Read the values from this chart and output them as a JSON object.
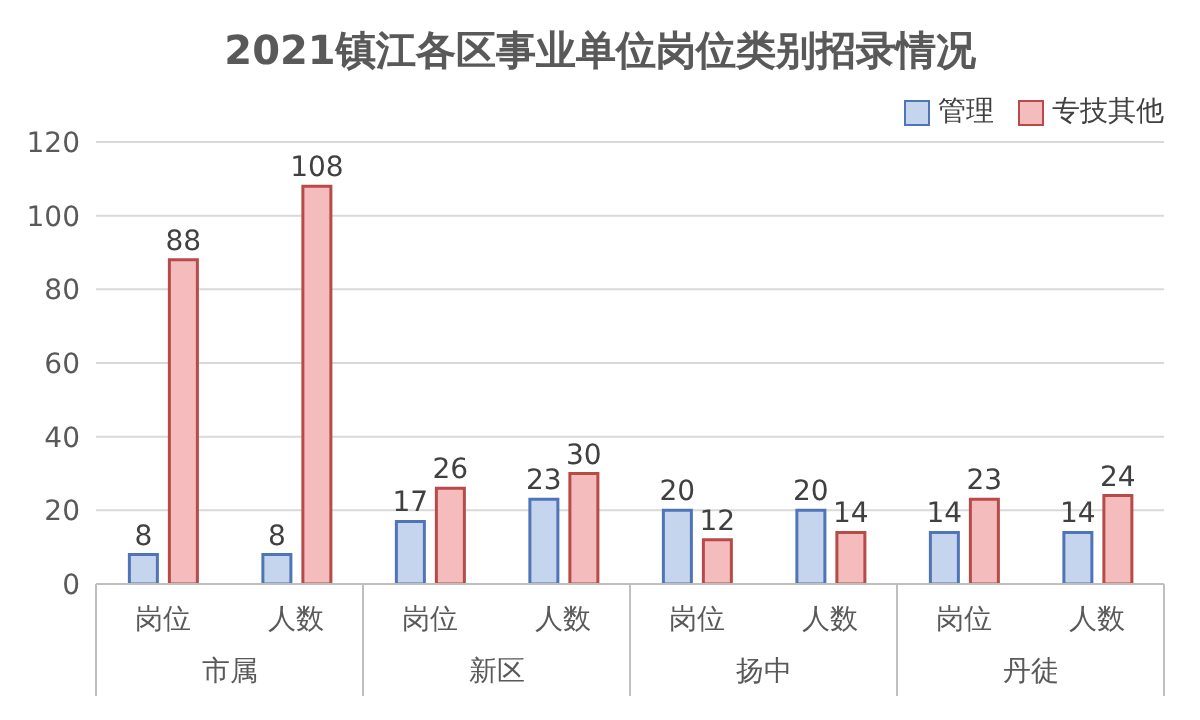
{
  "chart_data": {
    "type": "bar",
    "title": "2021镇江各区事业单位岗位类别招录情况",
    "categories": [
      "岗位",
      "人数",
      "岗位",
      "人数",
      "岗位",
      "人数",
      "岗位",
      "人数"
    ],
    "annotations": [
      "市属",
      "新区",
      "扬中",
      "丹徒"
    ],
    "series": [
      {
        "name": "管理",
        "color": "#c5d5ee",
        "values": [
          8,
          8,
          17,
          23,
          20,
          20,
          14,
          14
        ]
      },
      {
        "name": "专技其他",
        "color": "#f4bcbc",
        "values": [
          88,
          108,
          26,
          30,
          12,
          14,
          23,
          24
        ]
      }
    ],
    "ylim": [
      0,
      120
    ],
    "yticks": [
      0,
      20,
      40,
      60,
      80,
      100,
      120
    ],
    "grid": "y",
    "legend": "top right",
    "data_labels": true
  }
}
